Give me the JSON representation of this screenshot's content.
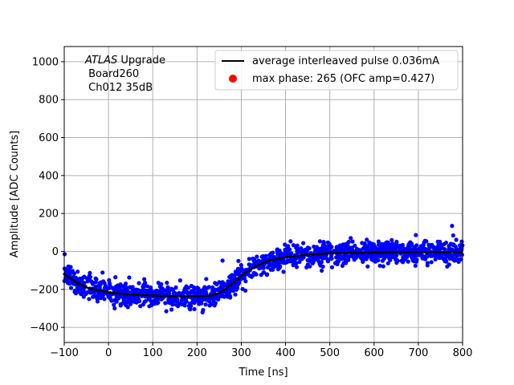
{
  "chart_data": {
    "type": "scatter",
    "title": "",
    "xlabel": "Time [ns]",
    "ylabel": "Amplitude [ADC Counts]",
    "xlim": [
      -100,
      800
    ],
    "ylim": [
      -480,
      1080
    ],
    "xticks": [
      -100,
      0,
      100,
      200,
      300,
      400,
      500,
      600,
      700,
      800
    ],
    "yticks": [
      -400,
      -200,
      0,
      200,
      400,
      600,
      800,
      1000
    ],
    "grid": true,
    "annotation": {
      "line1_italic": "ATLAS",
      "line1_rest": " Upgrade",
      "line2": " Board260",
      "line3": " Ch012 35dB"
    },
    "legend": {
      "placement": "top-right",
      "entries": [
        {
          "label": "average interleaved pulse 0.036mA",
          "marker": "line",
          "color": "#000000"
        },
        {
          "label": "max phase: 265 (OFC amp=0.427)",
          "marker": "dot",
          "color": "#ff0000"
        }
      ]
    },
    "scatter_color": "#0000ff",
    "scatter_noise_sigma": 30,
    "series": [
      {
        "name": "average interleaved pulse 0.036mA",
        "color": "#000000",
        "points": [
          [
            -100,
            -120
          ],
          [
            -75,
            -160
          ],
          [
            -50,
            -190
          ],
          [
            -25,
            -205
          ],
          [
            0,
            -215
          ],
          [
            25,
            -222
          ],
          [
            50,
            -228
          ],
          [
            75,
            -230
          ],
          [
            100,
            -232
          ],
          [
            125,
            -235
          ],
          [
            150,
            -236
          ],
          [
            175,
            -236
          ],
          [
            200,
            -236
          ],
          [
            225,
            -235
          ],
          [
            240,
            -228
          ],
          [
            255,
            -212
          ],
          [
            270,
            -188
          ],
          [
            285,
            -160
          ],
          [
            300,
            -128
          ],
          [
            320,
            -95
          ],
          [
            340,
            -70
          ],
          [
            360,
            -52
          ],
          [
            380,
            -40
          ],
          [
            400,
            -31
          ],
          [
            420,
            -24
          ],
          [
            450,
            -18
          ],
          [
            480,
            -13
          ],
          [
            500,
            -10
          ],
          [
            550,
            -7
          ],
          [
            600,
            -5
          ],
          [
            650,
            -4
          ],
          [
            700,
            -3
          ],
          [
            750,
            -3
          ],
          [
            800,
            -3
          ]
        ]
      }
    ]
  }
}
